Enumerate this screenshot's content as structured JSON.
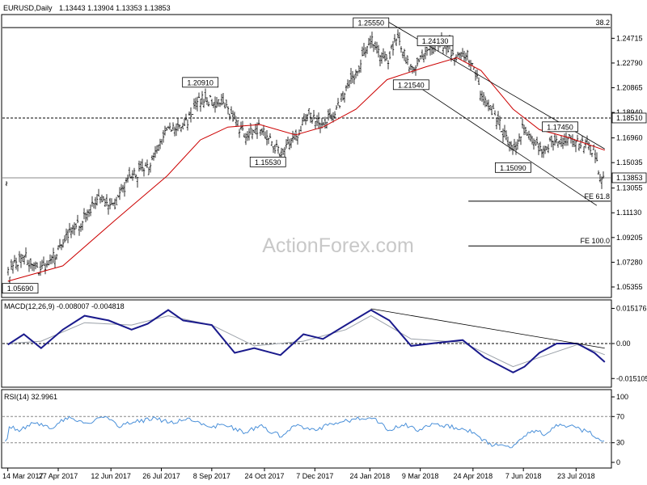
{
  "header": {
    "symbol": "EURUSD,Daily",
    "ohlc": "1.13443 1.13904 1.13353 1.13853"
  },
  "watermark": "ActionForex.com",
  "colors": {
    "bars": "#000000",
    "ma": "#cc0000",
    "macd": "#1a1a8c",
    "signal": "#9aa0a8",
    "rsi": "#4a90d9",
    "trend": "#000000"
  },
  "chart_data": {
    "type": "line",
    "price_panel": {
      "ylim": [
        1.046,
        1.265
      ],
      "tick_labels": [
        "1.24715",
        "1.22790",
        "1.20865",
        "1.18940",
        "1.16960",
        "1.15035",
        "1.13055",
        "1.11130",
        "1.09205",
        "1.07280",
        "1.05355"
      ],
      "tick_values": [
        1.24715,
        1.2279,
        1.20865,
        1.1894,
        1.1696,
        1.15035,
        1.13055,
        1.1113,
        1.09205,
        1.0728,
        1.05355
      ],
      "last_price": "1.13853",
      "last_price_value": 1.13853,
      "level_1": "1.18510",
      "level_1_value": 1.1851,
      "annotations": [
        {
          "text": "1.25550",
          "x": "2018-01-25",
          "y": 1.2555
        },
        {
          "text": "1.24130",
          "x": "2018-03-22",
          "y": 1.2413
        },
        {
          "text": "1.21540",
          "x": "2018-03-01",
          "y": 1.2154
        },
        {
          "text": "1.20910",
          "x": "2017-08-29",
          "y": 1.2091
        },
        {
          "text": "1.15530",
          "x": "2017-10-27",
          "y": 1.1553
        },
        {
          "text": "1.15090",
          "x": "2018-05-29",
          "y": 1.1509
        },
        {
          "text": "1.17450",
          "x": "2018-07-09",
          "y": 1.1745
        },
        {
          "text": "1.05690",
          "x": "2017-03-16",
          "y": 1.0569
        }
      ],
      "fib_levels": [
        {
          "text": "38.2",
          "y": 1.2555
        },
        {
          "text": "FE 61.8",
          "y": 1.1203
        },
        {
          "text": "FE 100.0",
          "y": 1.0855
        }
      ],
      "close_path": [
        [
          "2017-03-14",
          1.063
        ],
        [
          "2017-03-28",
          1.08
        ],
        [
          "2017-04-05",
          1.066
        ],
        [
          "2017-04-20",
          1.072
        ],
        [
          "2017-05-01",
          1.09
        ],
        [
          "2017-05-15",
          1.102
        ],
        [
          "2017-05-31",
          1.122
        ],
        [
          "2017-06-15",
          1.118
        ],
        [
          "2017-06-30",
          1.14
        ],
        [
          "2017-07-14",
          1.146
        ],
        [
          "2017-07-31",
          1.176
        ],
        [
          "2017-08-14",
          1.178
        ],
        [
          "2017-08-29",
          1.2
        ],
        [
          "2017-09-08",
          1.198
        ],
        [
          "2017-09-22",
          1.192
        ],
        [
          "2017-10-06",
          1.172
        ],
        [
          "2017-10-20",
          1.178
        ],
        [
          "2017-11-07",
          1.158
        ],
        [
          "2017-11-20",
          1.17
        ],
        [
          "2017-12-01",
          1.19
        ],
        [
          "2017-12-14",
          1.178
        ],
        [
          "2017-12-29",
          1.198
        ],
        [
          "2018-01-12",
          1.22
        ],
        [
          "2018-01-25",
          1.248
        ],
        [
          "2018-02-08",
          1.228
        ],
        [
          "2018-02-16",
          1.25
        ],
        [
          "2018-03-01",
          1.222
        ],
        [
          "2018-03-14",
          1.236
        ],
        [
          "2018-03-27",
          1.245
        ],
        [
          "2018-04-10",
          1.232
        ],
        [
          "2018-04-20",
          1.234
        ],
        [
          "2018-05-01",
          1.206
        ],
        [
          "2018-05-15",
          1.184
        ],
        [
          "2018-05-29",
          1.158
        ],
        [
          "2018-06-07",
          1.178
        ],
        [
          "2018-06-21",
          1.16
        ],
        [
          "2018-07-02",
          1.166
        ],
        [
          "2018-07-16",
          1.17
        ],
        [
          "2018-07-27",
          1.166
        ],
        [
          "2018-08-08",
          1.16
        ],
        [
          "2018-08-14",
          1.134
        ],
        [
          "2018-08-17",
          1.1385
        ]
      ],
      "ma_path": [
        [
          "2017-03-14",
          1.058
        ],
        [
          "2017-05-01",
          1.07
        ],
        [
          "2017-06-15",
          1.105
        ],
        [
          "2017-07-31",
          1.14
        ],
        [
          "2017-08-29",
          1.168
        ],
        [
          "2017-09-22",
          1.178
        ],
        [
          "2017-10-20",
          1.18
        ],
        [
          "2017-11-20",
          1.172
        ],
        [
          "2017-12-14",
          1.178
        ],
        [
          "2018-01-12",
          1.192
        ],
        [
          "2018-02-08",
          1.215
        ],
        [
          "2018-03-14",
          1.225
        ],
        [
          "2018-04-10",
          1.232
        ],
        [
          "2018-05-01",
          1.222
        ],
        [
          "2018-05-29",
          1.192
        ],
        [
          "2018-06-21",
          1.176
        ],
        [
          "2018-07-16",
          1.17
        ],
        [
          "2018-08-17",
          1.16
        ]
      ],
      "trendlines": [
        {
          "from": [
            "2018-02-05",
            1.262
          ],
          "to": [
            "2018-08-17",
            1.161
          ]
        },
        {
          "from": [
            "2018-02-26",
            1.215
          ],
          "to": [
            "2018-08-10",
            1.117
          ]
        }
      ]
    },
    "macd_panel": {
      "title": "MACD(12,26,9) -0.008007 -0.004818",
      "ylim": [
        -0.0185,
        0.0185
      ],
      "tick_labels": [
        "0.015176",
        "0.00",
        "-0.015105"
      ],
      "tick_values": [
        0.015176,
        0.0,
        -0.015105
      ],
      "zero_value": 0.0,
      "macd_path": [
        [
          "2017-03-14",
          -0.0005
        ],
        [
          "2017-03-28",
          0.004
        ],
        [
          "2017-04-12",
          -0.002
        ],
        [
          "2017-05-01",
          0.006
        ],
        [
          "2017-05-20",
          0.012
        ],
        [
          "2017-06-10",
          0.01
        ],
        [
          "2017-06-30",
          0.006
        ],
        [
          "2017-07-14",
          0.0085
        ],
        [
          "2017-08-01",
          0.0145
        ],
        [
          "2017-08-14",
          0.01
        ],
        [
          "2017-09-08",
          0.008
        ],
        [
          "2017-09-28",
          -0.004
        ],
        [
          "2017-10-15",
          -0.002
        ],
        [
          "2017-11-07",
          -0.005
        ],
        [
          "2017-11-27",
          0.004
        ],
        [
          "2017-12-14",
          0.002
        ],
        [
          "2018-01-03",
          0.008
        ],
        [
          "2018-01-25",
          0.0145
        ],
        [
          "2018-02-10",
          0.01
        ],
        [
          "2018-03-01",
          -0.001
        ],
        [
          "2018-03-27",
          0.0005
        ],
        [
          "2018-04-15",
          0.0015
        ],
        [
          "2018-05-04",
          -0.006
        ],
        [
          "2018-05-29",
          -0.0125
        ],
        [
          "2018-06-08",
          -0.01
        ],
        [
          "2018-06-21",
          -0.004
        ],
        [
          "2018-07-06",
          0.0
        ],
        [
          "2018-07-24",
          0.0
        ],
        [
          "2018-08-08",
          -0.004
        ],
        [
          "2018-08-17",
          -0.008
        ]
      ],
      "signal_path": [
        [
          "2017-03-14",
          0.0
        ],
        [
          "2017-04-12",
          0.001
        ],
        [
          "2017-05-20",
          0.009
        ],
        [
          "2017-06-30",
          0.008
        ],
        [
          "2017-08-01",
          0.012
        ],
        [
          "2017-09-08",
          0.008
        ],
        [
          "2017-10-15",
          -0.001
        ],
        [
          "2017-11-27",
          0.001
        ],
        [
          "2018-01-03",
          0.006
        ],
        [
          "2018-01-25",
          0.012
        ],
        [
          "2018-03-01",
          0.002
        ],
        [
          "2018-04-15",
          0.0005
        ],
        [
          "2018-05-29",
          -0.01
        ],
        [
          "2018-06-21",
          -0.006
        ],
        [
          "2018-07-24",
          -0.0005
        ],
        [
          "2018-08-17",
          -0.0048
        ]
      ],
      "trendline": {
        "from": [
          "2018-01-25",
          0.015
        ],
        "to": [
          "2018-08-17",
          -0.002
        ]
      }
    },
    "rsi_panel": {
      "title": "RSI(14) 32.9961",
      "ylim": [
        0,
        100
      ],
      "tick_labels": [
        "100",
        "70",
        "30",
        "0"
      ],
      "tick_values": [
        100,
        70,
        30,
        0
      ],
      "levels": [
        70,
        30
      ],
      "rsi_path": [
        [
          "2017-03-14",
          58
        ],
        [
          "2017-03-24",
          48
        ],
        [
          "2017-04-06",
          60
        ],
        [
          "2017-04-20",
          52
        ],
        [
          "2017-05-05",
          68
        ],
        [
          "2017-05-22",
          60
        ],
        [
          "2017-06-05",
          70
        ],
        [
          "2017-06-20",
          56
        ],
        [
          "2017-07-05",
          62
        ],
        [
          "2017-07-20",
          68
        ],
        [
          "2017-08-03",
          60
        ],
        [
          "2017-08-18",
          66
        ],
        [
          "2017-09-05",
          54
        ],
        [
          "2017-09-20",
          58
        ],
        [
          "2017-10-06",
          46
        ],
        [
          "2017-10-20",
          56
        ],
        [
          "2017-11-07",
          40
        ],
        [
          "2017-11-20",
          56
        ],
        [
          "2017-12-06",
          48
        ],
        [
          "2017-12-20",
          58
        ],
        [
          "2018-01-05",
          64
        ],
        [
          "2018-01-25",
          70
        ],
        [
          "2018-02-09",
          50
        ],
        [
          "2018-02-22",
          58
        ],
        [
          "2018-03-08",
          48
        ],
        [
          "2018-03-22",
          60
        ],
        [
          "2018-04-10",
          52
        ],
        [
          "2018-04-24",
          46
        ],
        [
          "2018-05-08",
          28
        ],
        [
          "2018-05-29",
          22
        ],
        [
          "2018-06-12",
          48
        ],
        [
          "2018-06-25",
          44
        ],
        [
          "2018-07-09",
          58
        ],
        [
          "2018-07-24",
          52
        ],
        [
          "2018-08-08",
          42
        ],
        [
          "2018-08-15",
          30
        ],
        [
          "2018-08-17",
          33
        ]
      ]
    },
    "x_axis": {
      "range": [
        "2017-03-10",
        "2018-08-20"
      ],
      "tick_labels": [
        "14 Mar 2017",
        "27 Apr 2017",
        "12 Jun 2017",
        "26 Jul 2017",
        "8 Sep 2017",
        "24 Oct 2017",
        "7 Dec 2017",
        "24 Jan 2018",
        "9 Mar 2018",
        "24 Apr 2018",
        "7 Jun 2018",
        "23 Jul 2018"
      ],
      "tick_dates": [
        "2017-03-14",
        "2017-04-27",
        "2017-06-12",
        "2017-07-26",
        "2017-09-08",
        "2017-10-24",
        "2017-12-07",
        "2018-01-24",
        "2018-03-09",
        "2018-04-24",
        "2018-06-07",
        "2018-07-23"
      ]
    }
  }
}
